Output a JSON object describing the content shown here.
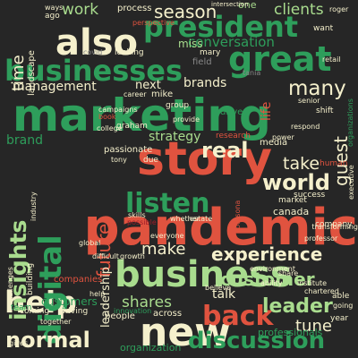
{
  "colors": {
    "background": "#262626",
    "green": "#2e9e5b",
    "dark_green": "#1e7a45",
    "light_green": "#a9dc8e",
    "cream": "#f5f0cc",
    "red": "#e0533f",
    "dark_red": "#9e1c28",
    "orange": "#f59a5b",
    "grey": "#888888"
  },
  "words": [
    {
      "text": "marketing",
      "color": "green"
    },
    {
      "text": "pandemic",
      "color": "red"
    },
    {
      "text": "story",
      "color": "red"
    },
    {
      "text": "business",
      "color": "light_green"
    },
    {
      "text": "businesses",
      "color": "green"
    },
    {
      "text": "also",
      "color": "cream"
    },
    {
      "text": "great",
      "color": "green"
    },
    {
      "text": "president",
      "color": "green"
    },
    {
      "text": "new",
      "color": "cream"
    },
    {
      "text": "help",
      "color": "cream"
    },
    {
      "text": "digital",
      "color": "green"
    },
    {
      "text": "listen",
      "color": "green"
    },
    {
      "text": "insights",
      "color": "light_green"
    },
    {
      "text": "world",
      "color": "cream"
    },
    {
      "text": "real",
      "color": "cream"
    },
    {
      "text": "back",
      "color": "red"
    },
    {
      "text": "leader",
      "color": "light_green"
    },
    {
      "text": "discussion",
      "color": "green"
    },
    {
      "text": "experience",
      "color": "cream"
    },
    {
      "text": "normal",
      "color": "cream"
    },
    {
      "text": "customer",
      "color": "light_green"
    },
    {
      "text": "many",
      "color": "cream"
    },
    {
      "text": "season",
      "color": "cream"
    },
    {
      "text": "work",
      "color": "light_green"
    },
    {
      "text": "time",
      "color": "cream"
    },
    {
      "text": "make",
      "color": "cream"
    },
    {
      "text": "future",
      "color": "red"
    },
    {
      "text": "take",
      "color": "cream"
    },
    {
      "text": "guest",
      "color": "cream"
    },
    {
      "text": "shares",
      "color": "light_green"
    },
    {
      "text": "tune",
      "color": "cream"
    },
    {
      "text": "leadership",
      "color": "cream"
    },
    {
      "text": "management",
      "color": "cream"
    },
    {
      "text": "strategy",
      "color": "light_green"
    },
    {
      "text": "conversation",
      "color": "green"
    },
    {
      "text": "clients",
      "color": "light_green"
    },
    {
      "text": "brands",
      "color": "cream"
    },
    {
      "text": "brand",
      "color": "green"
    },
    {
      "text": "next",
      "color": "cream"
    },
    {
      "text": "talk",
      "color": "cream"
    },
    {
      "text": "customers",
      "color": "green"
    },
    {
      "text": "miss",
      "color": "light_green"
    },
    {
      "text": "one",
      "color": "light_green"
    },
    {
      "text": "canada",
      "color": "cream"
    },
    {
      "text": "passionate",
      "color": "cream"
    },
    {
      "text": "media",
      "color": "cream"
    },
    {
      "text": "organization",
      "color": "green"
    },
    {
      "text": "across",
      "color": "cream"
    },
    {
      "text": "professionals",
      "color": "green"
    },
    {
      "text": "companies",
      "color": "red"
    },
    {
      "text": "people",
      "color": "cream"
    },
    {
      "text": "driving",
      "color": "cream"
    },
    {
      "text": "coming",
      "color": "cream"
    },
    {
      "text": "company",
      "color": "cream"
    },
    {
      "text": "building",
      "color": "cream"
    },
    {
      "text": "want",
      "color": "cream"
    },
    {
      "text": "mike",
      "color": "cream"
    },
    {
      "text": "drive",
      "color": "green"
    },
    {
      "text": "life",
      "color": "red"
    },
    {
      "text": "research",
      "color": "red"
    },
    {
      "text": "human",
      "color": "red"
    },
    {
      "text": "success",
      "color": "cream"
    },
    {
      "text": "market",
      "color": "cream"
    },
    {
      "text": "graham",
      "color": "cream"
    },
    {
      "text": "group",
      "color": "cream"
    },
    {
      "text": "field",
      "color": "grey"
    },
    {
      "text": "mary",
      "color": "cream"
    },
    {
      "text": "looking",
      "color": "cream"
    },
    {
      "text": "process",
      "color": "cream"
    },
    {
      "text": "covid",
      "color": "grey"
    },
    {
      "text": "landscape",
      "color": "cream"
    },
    {
      "text": "ways",
      "color": "cream"
    },
    {
      "text": "ago",
      "color": "cream"
    },
    {
      "text": "perspective",
      "color": "red"
    },
    {
      "text": "intersection",
      "color": "cream"
    },
    {
      "text": "roger",
      "color": "cream"
    },
    {
      "text": "retail",
      "color": "cream"
    },
    {
      "text": "senior",
      "color": "cream"
    },
    {
      "text": "shift",
      "color": "cream"
    },
    {
      "text": "organizations",
      "color": "green"
    },
    {
      "text": "industry",
      "color": "cream"
    },
    {
      "text": "team",
      "color": "green"
    },
    {
      "text": "year",
      "color": "cream"
    },
    {
      "text": "going",
      "color": "cream"
    },
    {
      "text": "able",
      "color": "cream"
    },
    {
      "text": "growth",
      "color": "cream"
    },
    {
      "text": "innovation",
      "color": "green"
    },
    {
      "text": "together",
      "color": "cream"
    },
    {
      "text": "skills",
      "color": "cream"
    },
    {
      "text": "share",
      "color": "cream"
    },
    {
      "text": "institute",
      "color": "cream"
    },
    {
      "text": "chartered",
      "color": "cream"
    },
    {
      "text": "executive",
      "color": "cream"
    },
    {
      "text": "professor",
      "color": "cream"
    },
    {
      "text": "college",
      "color": "cream"
    },
    {
      "text": "campaigns",
      "color": "cream"
    },
    {
      "text": "provide",
      "color": "cream"
    },
    {
      "text": "estate",
      "color": "cream"
    },
    {
      "text": "whether",
      "color": "cream"
    },
    {
      "text": "environment",
      "color": "cream"
    },
    {
      "text": "difficult",
      "color": "cream"
    },
    {
      "text": "possible",
      "color": "dark_red"
    },
    {
      "text": "global",
      "color": "cream"
    },
    {
      "text": "ability",
      "color": "cream"
    },
    {
      "text": "tony",
      "color": "cream"
    },
    {
      "text": "tania",
      "color": "grey"
    },
    {
      "text": "challenges",
      "color": "cream"
    },
    {
      "text": "believe",
      "color": "cream"
    },
    {
      "text": "everyone",
      "color": "cream"
    },
    {
      "text": "power",
      "color": "cream"
    },
    {
      "text": "gives",
      "color": "cream"
    },
    {
      "text": "transforming",
      "color": "cream"
    },
    {
      "text": "respond",
      "color": "cream"
    },
    {
      "text": "due",
      "color": "cream"
    },
    {
      "text": "help",
      "color": "cream"
    },
    {
      "text": "book",
      "color": "red"
    },
    {
      "text": "career",
      "color": "cream"
    },
    {
      "text": "persona",
      "color": "red"
    }
  ]
}
